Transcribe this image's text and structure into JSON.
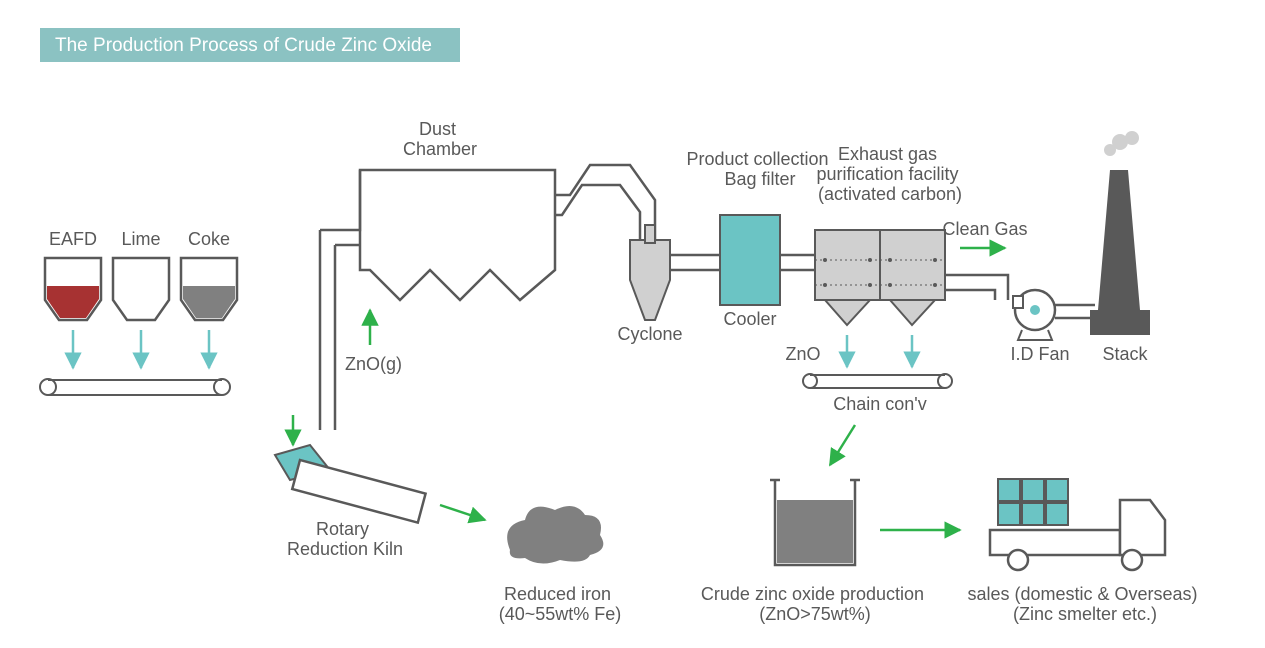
{
  "title": "The Production Process of Crude Zinc Oxide",
  "title_bg": "#8bc2c2",
  "title_color": "#ffffff",
  "background": "#ffffff",
  "stroke_main": "#595959",
  "arrow_green": "#2eb14a",
  "arrow_teal": "#6bc4c4",
  "teal_fill": "#6bc4c4",
  "text_color": "#595959",
  "red_fill": "#a73232",
  "gray_fill": "#808080",
  "light_gray": "#d0d0d0",
  "dark_gray": "#595959",
  "font_size_label": 18,
  "font_size_title": 19,
  "hoppers": [
    {
      "label": "EAFD",
      "fill": "#a73232"
    },
    {
      "label": "Lime",
      "fill": "#ffffff"
    },
    {
      "label": "Coke",
      "fill": "#808080"
    }
  ],
  "labels": {
    "dust_chamber": "Dust\nChamber",
    "zno_g": "ZnO(g)",
    "rotary_kiln": "Rotary\nReduction Kiln",
    "reduced_iron": "Reduced iron\n(40~55wt% Fe)",
    "cyclone": "Cyclone",
    "product_collection": "Product collection\nBag filter",
    "cooler": "Cooler",
    "exhaust": "Exhaust gas\npurification facility\n(activated carbon)",
    "clean_gas": "Clean Gas",
    "id_fan": "I.D Fan",
    "stack": "Stack",
    "zno": "ZnO",
    "chain_conv": "Chain con'v",
    "crude_production": "Crude zinc oxide production\n(ZnO>75wt%)",
    "sales": "sales (domestic & Overseas)\n(Zinc smelter etc.)"
  }
}
